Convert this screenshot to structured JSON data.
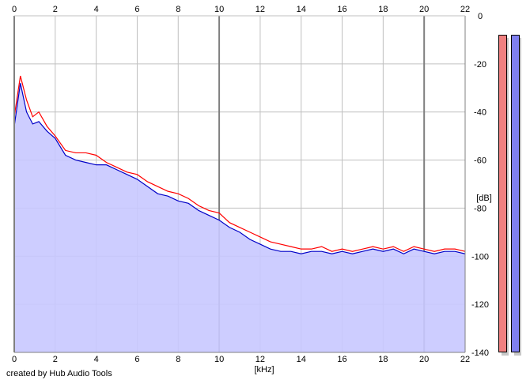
{
  "chart_data": {
    "type": "line",
    "title": "",
    "xlabel": "[kHz]",
    "ylabel": "[dB]",
    "xlim": [
      0,
      22
    ],
    "ylim": [
      -140,
      0
    ],
    "x_ticks": [
      "0",
      "2",
      "4",
      "6",
      "8",
      "10",
      "12",
      "14",
      "16",
      "18",
      "20",
      "22"
    ],
    "y_ticks": [
      "0",
      "-20",
      "-40",
      "-60",
      "-80",
      "-100",
      "-120",
      "-140"
    ],
    "grid": true,
    "colors": {
      "fill": "#c8c8ff",
      "grid": "#c0c0c0",
      "major_grid": "#808080",
      "series_red": "#ff0000",
      "series_blue": "#0000c8"
    },
    "series": [
      {
        "name": "",
        "color": "#ff0000",
        "x": [
          0.0,
          0.3,
          0.6,
          0.9,
          1.2,
          1.6,
          2.0,
          2.5,
          3.0,
          3.5,
          4.0,
          4.5,
          5.0,
          5.5,
          6.0,
          6.5,
          7.0,
          7.5,
          8.0,
          8.5,
          9.0,
          9.5,
          10.0,
          10.5,
          11.0,
          11.5,
          12.0,
          12.5,
          13.0,
          13.5,
          14.0,
          14.5,
          15.0,
          15.5,
          16.0,
          16.5,
          17.0,
          17.5,
          18.0,
          18.5,
          19.0,
          19.5,
          20.0,
          20.5,
          21.0,
          21.5,
          22.0
        ],
        "y": [
          -42,
          -25,
          -35,
          -42,
          -40,
          -46,
          -50,
          -56,
          -57,
          -57,
          -58,
          -61,
          -63,
          -65,
          -66,
          -69,
          -71,
          -73,
          -74,
          -76,
          -79,
          -81,
          -82,
          -86,
          -88,
          -90,
          -92,
          -94,
          -95,
          -96,
          -97,
          -97,
          -96,
          -98,
          -97,
          -98,
          -97,
          -96,
          -97,
          -96,
          -98,
          -96,
          -97,
          -98,
          -97,
          -97,
          -98
        ]
      },
      {
        "name": "",
        "color": "#0000c8",
        "x": [
          0.0,
          0.3,
          0.6,
          0.9,
          1.2,
          1.6,
          2.0,
          2.5,
          3.0,
          3.5,
          4.0,
          4.5,
          5.0,
          5.5,
          6.0,
          6.5,
          7.0,
          7.5,
          8.0,
          8.5,
          9.0,
          9.5,
          10.0,
          10.5,
          11.0,
          11.5,
          12.0,
          12.5,
          13.0,
          13.5,
          14.0,
          14.5,
          15.0,
          15.5,
          16.0,
          16.5,
          17.0,
          17.5,
          18.0,
          18.5,
          19.0,
          19.5,
          20.0,
          20.5,
          21.0,
          21.5,
          22.0
        ],
        "y": [
          -46,
          -28,
          -40,
          -45,
          -44,
          -48,
          -51,
          -58,
          -60,
          -61,
          -62,
          -62,
          -64,
          -66,
          -68,
          -71,
          -74,
          -75,
          -77,
          -78,
          -81,
          -83,
          -85,
          -88,
          -90,
          -93,
          -95,
          -97,
          -98,
          -98,
          -99,
          -98,
          -98,
          -99,
          -98,
          -99,
          -98,
          -97,
          -98,
          -97,
          -99,
          -97,
          -98,
          -99,
          -98,
          -98,
          -99
        ]
      }
    ],
    "level_meters": [
      {
        "channel": "",
        "color": "#f08080",
        "level_db": 0
      },
      {
        "channel": "",
        "color": "#8080f0",
        "level_db": 0
      }
    ]
  },
  "footer": {
    "credit": "created by Hub Audio Tools"
  }
}
